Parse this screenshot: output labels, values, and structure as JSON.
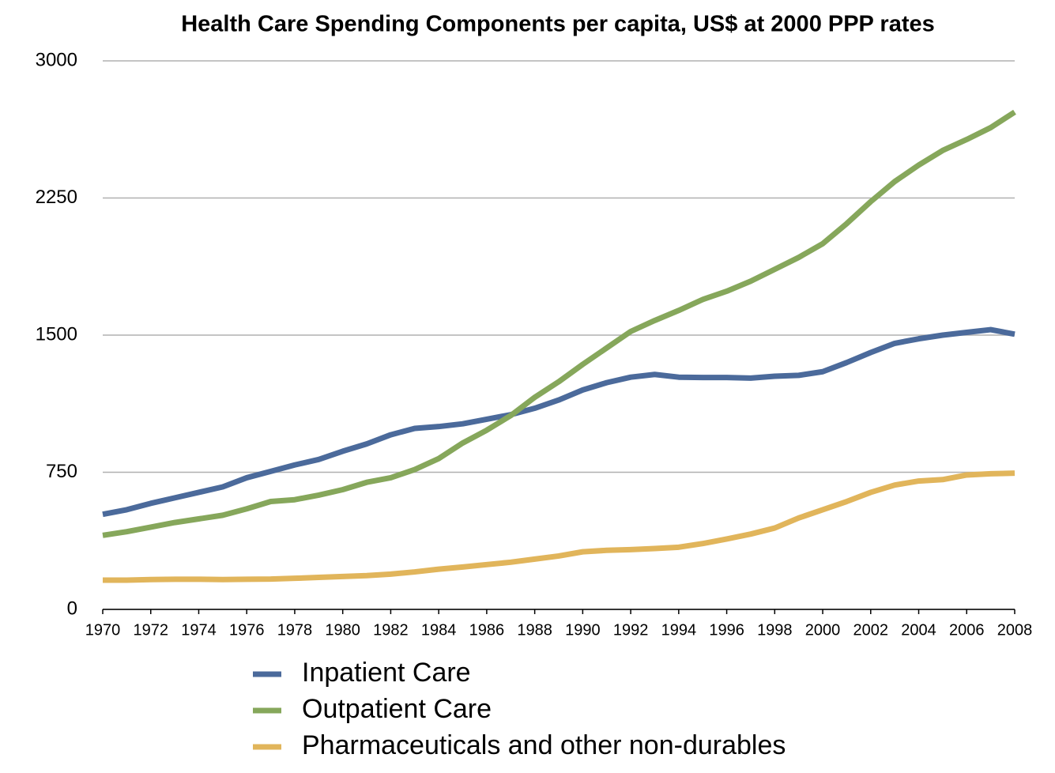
{
  "chart_data": {
    "type": "line",
    "title": "Health Care Spending Components per capita, US$ at 2000 PPP rates",
    "x": [
      1970,
      1971,
      1972,
      1973,
      1974,
      1975,
      1976,
      1977,
      1978,
      1979,
      1980,
      1981,
      1982,
      1983,
      1984,
      1985,
      1986,
      1987,
      1988,
      1989,
      1990,
      1991,
      1992,
      1993,
      1994,
      1995,
      1996,
      1997,
      1998,
      1999,
      2000,
      2001,
      2002,
      2003,
      2004,
      2005,
      2006,
      2007,
      2008
    ],
    "xlim": [
      1970,
      2008
    ],
    "xticks": [
      1970,
      1972,
      1974,
      1976,
      1978,
      1980,
      1982,
      1984,
      1986,
      1988,
      1990,
      1992,
      1994,
      1996,
      1998,
      2000,
      2002,
      2004,
      2006,
      2008
    ],
    "ylim": [
      0,
      3000
    ],
    "yticks": [
      0,
      750,
      1500,
      2250,
      3000
    ],
    "grid": true,
    "legend": "bottom",
    "series": [
      {
        "name": "Inpatient Care",
        "color": "#4b6a9b",
        "values": [
          520,
          545,
          580,
          610,
          640,
          670,
          720,
          755,
          790,
          820,
          865,
          905,
          955,
          990,
          1000,
          1015,
          1040,
          1065,
          1100,
          1145,
          1200,
          1240,
          1270,
          1285,
          1270,
          1268,
          1268,
          1265,
          1275,
          1280,
          1300,
          1350,
          1405,
          1455,
          1480,
          1500,
          1515,
          1530,
          1505
        ]
      },
      {
        "name": "Outpatient Care",
        "color": "#86a75b",
        "values": [
          405,
          425,
          450,
          475,
          495,
          515,
          550,
          590,
          600,
          625,
          655,
          695,
          720,
          765,
          825,
          910,
          980,
          1060,
          1160,
          1245,
          1340,
          1430,
          1520,
          1580,
          1635,
          1695,
          1740,
          1795,
          1860,
          1925,
          2000,
          2110,
          2230,
          2340,
          2430,
          2510,
          2570,
          2635,
          2720
        ]
      },
      {
        "name": "Pharmaceuticals and other non-durables",
        "color": "#e1b55b",
        "values": [
          160,
          160,
          163,
          165,
          165,
          163,
          165,
          166,
          170,
          175,
          180,
          185,
          193,
          205,
          220,
          232,
          245,
          258,
          275,
          292,
          315,
          323,
          327,
          333,
          340,
          360,
          385,
          412,
          445,
          500,
          545,
          590,
          640,
          680,
          702,
          710,
          735,
          742,
          745
        ]
      }
    ]
  }
}
